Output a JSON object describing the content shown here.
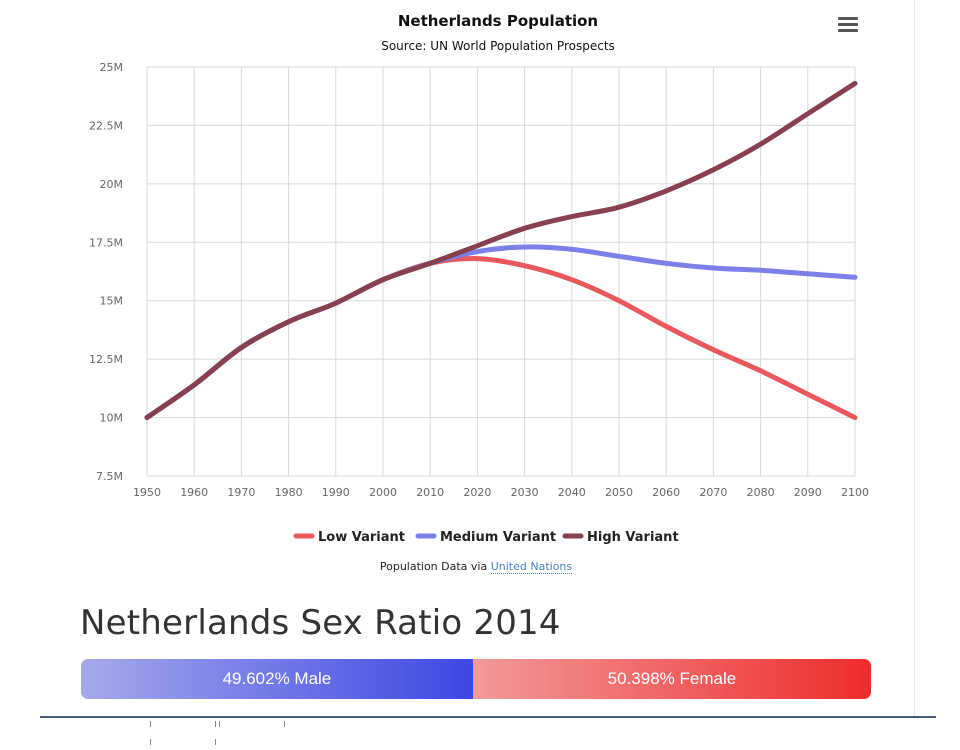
{
  "chart_data": {
    "type": "line",
    "title": "Netherlands Population",
    "subtitle": "Source: UN World Population Prospects",
    "xlabel": "",
    "ylabel": "",
    "xlim": [
      1950,
      2100
    ],
    "ylim": [
      7.5,
      25
    ],
    "x_ticks": [
      1950,
      1960,
      1970,
      1980,
      1990,
      2000,
      2010,
      2020,
      2030,
      2040,
      2050,
      2060,
      2070,
      2080,
      2090,
      2100
    ],
    "y_ticks": [
      7.5,
      10,
      12.5,
      15,
      17.5,
      20,
      22.5,
      25
    ],
    "y_tick_labels": [
      "7.5M",
      "10M",
      "12.5M",
      "15M",
      "17.5M",
      "20M",
      "22.5M",
      "25M"
    ],
    "grid": true,
    "legend_position": "bottom-center",
    "series": [
      {
        "name": "Low Variant",
        "color": "#e8585c",
        "points": [
          [
            1950,
            10.0
          ],
          [
            1960,
            11.4
          ],
          [
            1970,
            13.0
          ],
          [
            1980,
            14.1
          ],
          [
            1990,
            14.9
          ],
          [
            2000,
            15.9
          ],
          [
            2010,
            16.6
          ],
          [
            2020,
            16.8
          ],
          [
            2030,
            16.5
          ],
          [
            2040,
            15.9
          ],
          [
            2050,
            15.0
          ],
          [
            2060,
            13.9
          ],
          [
            2070,
            12.9
          ],
          [
            2080,
            12.0
          ],
          [
            2090,
            11.0
          ],
          [
            2100,
            10.0
          ]
        ]
      },
      {
        "name": "Medium Variant",
        "color": "#7c7fe8",
        "points": [
          [
            1950,
            10.0
          ],
          [
            1960,
            11.4
          ],
          [
            1970,
            13.0
          ],
          [
            1980,
            14.1
          ],
          [
            1990,
            14.9
          ],
          [
            2000,
            15.9
          ],
          [
            2010,
            16.6
          ],
          [
            2020,
            17.1
          ],
          [
            2030,
            17.3
          ],
          [
            2040,
            17.2
          ],
          [
            2050,
            16.9
          ],
          [
            2060,
            16.6
          ],
          [
            2070,
            16.4
          ],
          [
            2080,
            16.3
          ],
          [
            2090,
            16.15
          ],
          [
            2100,
            16.0
          ]
        ]
      },
      {
        "name": "High Variant",
        "color": "#86404f",
        "points": [
          [
            1950,
            10.0
          ],
          [
            1960,
            11.4
          ],
          [
            1970,
            13.0
          ],
          [
            1980,
            14.1
          ],
          [
            1990,
            14.9
          ],
          [
            2000,
            15.9
          ],
          [
            2010,
            16.6
          ],
          [
            2020,
            17.35
          ],
          [
            2030,
            18.1
          ],
          [
            2040,
            18.6
          ],
          [
            2050,
            19.0
          ],
          [
            2060,
            19.7
          ],
          [
            2070,
            20.6
          ],
          [
            2080,
            21.7
          ],
          [
            2090,
            23.0
          ],
          [
            2100,
            24.3
          ]
        ]
      }
    ]
  },
  "credit": {
    "prefix": "Population Data via",
    "link_text": "United Nations"
  },
  "sex_ratio": {
    "heading": "Netherlands Sex Ratio 2014",
    "male_percent": 49.602,
    "male_label": "49.602% Male",
    "female_label": "50.398% Female"
  },
  "colors": {
    "male_gradient_start": "#a5a9eb",
    "male_gradient_end": "#3d46e3",
    "female_gradient_start": "#f19a9a",
    "female_gradient_end": "#ee2c2c"
  }
}
